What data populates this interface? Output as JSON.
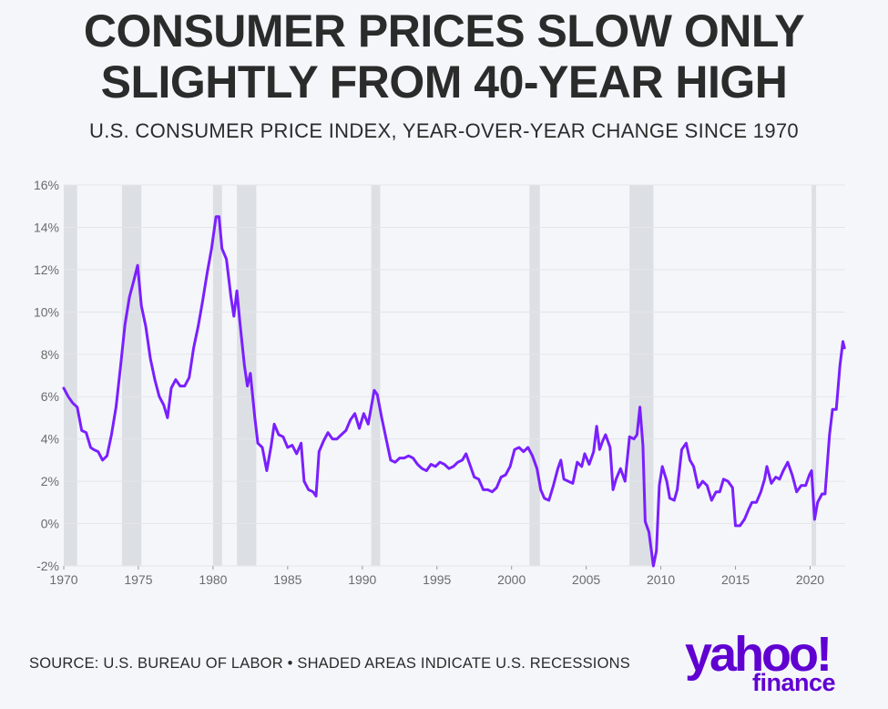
{
  "header": {
    "title": "CONSUMER PRICES SLOW ONLY\nSLIGHTLY FROM 40-YEAR HIGH",
    "subtitle": "U.S. CONSUMER PRICE INDEX, YEAR-OVER-YEAR CHANGE SINCE 1970"
  },
  "footer": {
    "source": "SOURCE: U.S. BUREAU OF LABOR • SHADED AREAS INDICATE U.S. RECESSIONS"
  },
  "logo": {
    "word": "yahoo!",
    "sub": "finance",
    "color": "#6001d2"
  },
  "chart_data": {
    "type": "line",
    "title": "CONSUMER PRICES SLOW ONLY SLIGHTLY FROM 40-YEAR HIGH",
    "subtitle": "U.S. CONSUMER PRICE INDEX, YEAR-OVER-YEAR CHANGE SINCE 1970",
    "xlabel": "",
    "ylabel": "",
    "xlim": [
      1970,
      2022.35
    ],
    "ylim": [
      -2,
      16
    ],
    "x_ticks": [
      1970,
      1975,
      1980,
      1985,
      1990,
      1995,
      2000,
      2005,
      2010,
      2015,
      2020
    ],
    "y_ticks": [
      -2,
      0,
      2,
      4,
      6,
      8,
      10,
      12,
      14,
      16
    ],
    "y_tick_labels": [
      "-2%",
      "0%",
      "2%",
      "4%",
      "6%",
      "8%",
      "10%",
      "12%",
      "14%",
      "16%"
    ],
    "grid": true,
    "line_color": "#7a1fff",
    "recession_color": "#dcdfe4",
    "recessions": [
      [
        1970.0,
        1970.9
      ],
      [
        1973.9,
        1975.2
      ],
      [
        1980.0,
        1980.6
      ],
      [
        1981.6,
        1982.9
      ],
      [
        1990.6,
        1991.2
      ],
      [
        2001.2,
        2001.9
      ],
      [
        2007.9,
        2009.5
      ],
      [
        2020.1,
        2020.4
      ]
    ],
    "series": [
      {
        "values": [
          [
            1970.0,
            6.4
          ],
          [
            1970.3,
            6.0
          ],
          [
            1970.6,
            5.7
          ],
          [
            1970.9,
            5.5
          ],
          [
            1971.2,
            4.4
          ],
          [
            1971.5,
            4.3
          ],
          [
            1971.8,
            3.6
          ],
          [
            1972.0,
            3.5
          ],
          [
            1972.3,
            3.4
          ],
          [
            1972.6,
            3.0
          ],
          [
            1972.9,
            3.2
          ],
          [
            1973.2,
            4.2
          ],
          [
            1973.5,
            5.5
          ],
          [
            1973.8,
            7.4
          ],
          [
            1974.1,
            9.4
          ],
          [
            1974.4,
            10.7
          ],
          [
            1974.7,
            11.5
          ],
          [
            1974.95,
            12.2
          ],
          [
            1975.2,
            10.3
          ],
          [
            1975.5,
            9.3
          ],
          [
            1975.8,
            7.8
          ],
          [
            1976.1,
            6.8
          ],
          [
            1976.4,
            6.0
          ],
          [
            1976.7,
            5.6
          ],
          [
            1976.95,
            5.0
          ],
          [
            1977.2,
            6.4
          ],
          [
            1977.5,
            6.8
          ],
          [
            1977.8,
            6.5
          ],
          [
            1978.1,
            6.5
          ],
          [
            1978.4,
            6.9
          ],
          [
            1978.7,
            8.3
          ],
          [
            1979.0,
            9.3
          ],
          [
            1979.3,
            10.5
          ],
          [
            1979.6,
            11.8
          ],
          [
            1979.9,
            13.0
          ],
          [
            1980.2,
            14.5
          ],
          [
            1980.4,
            14.5
          ],
          [
            1980.6,
            13.0
          ],
          [
            1980.9,
            12.5
          ],
          [
            1981.2,
            10.7
          ],
          [
            1981.4,
            9.8
          ],
          [
            1981.6,
            11.0
          ],
          [
            1981.8,
            9.5
          ],
          [
            1982.1,
            7.5
          ],
          [
            1982.3,
            6.5
          ],
          [
            1982.5,
            7.1
          ],
          [
            1982.8,
            5.0
          ],
          [
            1983.0,
            3.8
          ],
          [
            1983.3,
            3.6
          ],
          [
            1983.6,
            2.5
          ],
          [
            1983.9,
            3.7
          ],
          [
            1984.1,
            4.7
          ],
          [
            1984.4,
            4.2
          ],
          [
            1984.7,
            4.1
          ],
          [
            1985.0,
            3.6
          ],
          [
            1985.3,
            3.7
          ],
          [
            1985.6,
            3.3
          ],
          [
            1985.9,
            3.8
          ],
          [
            1986.1,
            2.0
          ],
          [
            1986.4,
            1.6
          ],
          [
            1986.7,
            1.5
          ],
          [
            1986.9,
            1.3
          ],
          [
            1987.1,
            3.4
          ],
          [
            1987.4,
            3.9
          ],
          [
            1987.7,
            4.3
          ],
          [
            1988.0,
            4.0
          ],
          [
            1988.3,
            4.0
          ],
          [
            1988.6,
            4.2
          ],
          [
            1988.9,
            4.4
          ],
          [
            1989.2,
            4.9
          ],
          [
            1989.5,
            5.2
          ],
          [
            1989.8,
            4.5
          ],
          [
            1990.1,
            5.2
          ],
          [
            1990.4,
            4.7
          ],
          [
            1990.6,
            5.5
          ],
          [
            1990.8,
            6.3
          ],
          [
            1991.0,
            6.1
          ],
          [
            1991.3,
            5.0
          ],
          [
            1991.6,
            4.0
          ],
          [
            1991.9,
            3.0
          ],
          [
            1992.2,
            2.9
          ],
          [
            1992.5,
            3.1
          ],
          [
            1992.8,
            3.1
          ],
          [
            1993.1,
            3.2
          ],
          [
            1993.4,
            3.1
          ],
          [
            1993.7,
            2.8
          ],
          [
            1994.0,
            2.6
          ],
          [
            1994.3,
            2.5
          ],
          [
            1994.6,
            2.8
          ],
          [
            1994.9,
            2.7
          ],
          [
            1995.2,
            2.9
          ],
          [
            1995.5,
            2.8
          ],
          [
            1995.8,
            2.6
          ],
          [
            1996.1,
            2.7
          ],
          [
            1996.4,
            2.9
          ],
          [
            1996.7,
            3.0
          ],
          [
            1996.95,
            3.3
          ],
          [
            1997.2,
            2.8
          ],
          [
            1997.5,
            2.2
          ],
          [
            1997.8,
            2.1
          ],
          [
            1998.1,
            1.6
          ],
          [
            1998.4,
            1.6
          ],
          [
            1998.7,
            1.5
          ],
          [
            1999.0,
            1.7
          ],
          [
            1999.3,
            2.2
          ],
          [
            1999.6,
            2.3
          ],
          [
            1999.9,
            2.7
          ],
          [
            2000.2,
            3.5
          ],
          [
            2000.5,
            3.6
          ],
          [
            2000.8,
            3.4
          ],
          [
            2001.1,
            3.6
          ],
          [
            2001.4,
            3.2
          ],
          [
            2001.7,
            2.6
          ],
          [
            2001.95,
            1.6
          ],
          [
            2002.2,
            1.2
          ],
          [
            2002.5,
            1.1
          ],
          [
            2002.8,
            1.8
          ],
          [
            2003.1,
            2.6
          ],
          [
            2003.3,
            3.0
          ],
          [
            2003.5,
            2.1
          ],
          [
            2003.8,
            2.0
          ],
          [
            2004.1,
            1.9
          ],
          [
            2004.4,
            2.9
          ],
          [
            2004.7,
            2.7
          ],
          [
            2004.9,
            3.3
          ],
          [
            2005.2,
            2.8
          ],
          [
            2005.5,
            3.4
          ],
          [
            2005.7,
            4.6
          ],
          [
            2005.9,
            3.5
          ],
          [
            2006.1,
            3.9
          ],
          [
            2006.3,
            4.2
          ],
          [
            2006.6,
            3.6
          ],
          [
            2006.8,
            1.6
          ],
          [
            2007.0,
            2.1
          ],
          [
            2007.3,
            2.6
          ],
          [
            2007.6,
            2.0
          ],
          [
            2007.9,
            4.1
          ],
          [
            2008.2,
            4.0
          ],
          [
            2008.4,
            4.2
          ],
          [
            2008.6,
            5.5
          ],
          [
            2008.8,
            3.7
          ],
          [
            2008.95,
            0.1
          ],
          [
            2009.2,
            -0.4
          ],
          [
            2009.5,
            -2.0
          ],
          [
            2009.7,
            -1.3
          ],
          [
            2009.9,
            1.8
          ],
          [
            2010.1,
            2.7
          ],
          [
            2010.4,
            2.0
          ],
          [
            2010.6,
            1.2
          ],
          [
            2010.9,
            1.1
          ],
          [
            2011.1,
            1.6
          ],
          [
            2011.4,
            3.5
          ],
          [
            2011.7,
            3.8
          ],
          [
            2011.95,
            3.0
          ],
          [
            2012.2,
            2.7
          ],
          [
            2012.5,
            1.7
          ],
          [
            2012.8,
            2.0
          ],
          [
            2013.1,
            1.8
          ],
          [
            2013.4,
            1.1
          ],
          [
            2013.7,
            1.5
          ],
          [
            2013.95,
            1.5
          ],
          [
            2014.2,
            2.1
          ],
          [
            2014.5,
            2.0
          ],
          [
            2014.8,
            1.7
          ],
          [
            2015.0,
            -0.1
          ],
          [
            2015.3,
            -0.1
          ],
          [
            2015.6,
            0.2
          ],
          [
            2015.9,
            0.7
          ],
          [
            2016.1,
            1.0
          ],
          [
            2016.4,
            1.0
          ],
          [
            2016.7,
            1.5
          ],
          [
            2016.95,
            2.1
          ],
          [
            2017.1,
            2.7
          ],
          [
            2017.4,
            1.9
          ],
          [
            2017.7,
            2.2
          ],
          [
            2017.95,
            2.1
          ],
          [
            2018.2,
            2.5
          ],
          [
            2018.5,
            2.9
          ],
          [
            2018.8,
            2.3
          ],
          [
            2018.95,
            1.9
          ],
          [
            2019.1,
            1.5
          ],
          [
            2019.4,
            1.8
          ],
          [
            2019.7,
            1.8
          ],
          [
            2019.95,
            2.3
          ],
          [
            2020.1,
            2.5
          ],
          [
            2020.3,
            0.2
          ],
          [
            2020.5,
            1.0
          ],
          [
            2020.8,
            1.4
          ],
          [
            2021.0,
            1.4
          ],
          [
            2021.3,
            4.2
          ],
          [
            2021.5,
            5.4
          ],
          [
            2021.75,
            5.4
          ],
          [
            2022.0,
            7.5
          ],
          [
            2022.2,
            8.6
          ],
          [
            2022.3,
            8.3
          ]
        ]
      }
    ]
  }
}
